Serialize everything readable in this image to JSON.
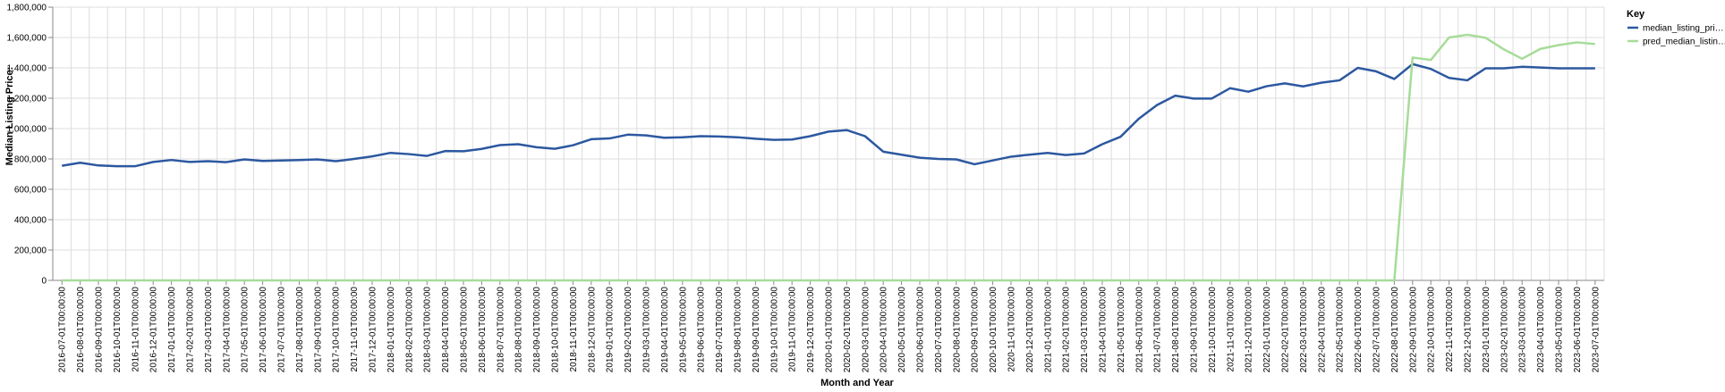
{
  "chart_data": {
    "type": "line",
    "title": "",
    "xlabel": "Month and Year",
    "ylabel": "Median Listing Price:",
    "ylim": [
      0,
      1800000
    ],
    "yticks": [
      0,
      200000,
      400000,
      600000,
      800000,
      1000000,
      1200000,
      1400000,
      1600000,
      1800000
    ],
    "ytick_labels": [
      "0",
      "200,000",
      "400,000",
      "600,000",
      "800,000",
      "1,000,000",
      "1,200,000",
      "1,400,000",
      "1,600,000",
      "1,800,000"
    ],
    "grid": true,
    "legend": {
      "title": "Key",
      "placement": "top-right"
    },
    "x": [
      "2016-07-01T00:00:00",
      "2016-08-01T00:00:00",
      "2016-09-01T00:00:00",
      "2016-10-01T00:00:00",
      "2016-11-01T00:00:00",
      "2016-12-01T00:00:00",
      "2017-01-01T00:00:00",
      "2017-02-01T00:00:00",
      "2017-03-01T00:00:00",
      "2017-04-01T00:00:00",
      "2017-05-01T00:00:00",
      "2017-06-01T00:00:00",
      "2017-07-01T00:00:00",
      "2017-08-01T00:00:00",
      "2017-09-01T00:00:00",
      "2017-10-01T00:00:00",
      "2017-11-01T00:00:00",
      "2017-12-01T00:00:00",
      "2018-01-01T00:00:00",
      "2018-02-01T00:00:00",
      "2018-03-01T00:00:00",
      "2018-04-01T00:00:00",
      "2018-05-01T00:00:00",
      "2018-06-01T00:00:00",
      "2018-07-01T00:00:00",
      "2018-08-01T00:00:00",
      "2018-09-01T00:00:00",
      "2018-10-01T00:00:00",
      "2018-11-01T00:00:00",
      "2018-12-01T00:00:00",
      "2019-01-01T00:00:00",
      "2019-02-01T00:00:00",
      "2019-03-01T00:00:00",
      "2019-04-01T00:00:00",
      "2019-05-01T00:00:00",
      "2019-06-01T00:00:00",
      "2019-07-01T00:00:00",
      "2019-08-01T00:00:00",
      "2019-09-01T00:00:00",
      "2019-10-01T00:00:00",
      "2019-11-01T00:00:00",
      "2019-12-01T00:00:00",
      "2020-01-01T00:00:00",
      "2020-02-01T00:00:00",
      "2020-03-01T00:00:00",
      "2020-04-01T00:00:00",
      "2020-05-01T00:00:00",
      "2020-06-01T00:00:00",
      "2020-07-01T00:00:00",
      "2020-08-01T00:00:00",
      "2020-09-01T00:00:00",
      "2020-10-01T00:00:00",
      "2020-11-01T00:00:00",
      "2020-12-01T00:00:00",
      "2021-01-01T00:00:00",
      "2021-02-01T00:00:00",
      "2021-03-01T00:00:00",
      "2021-04-01T00:00:00",
      "2021-05-01T00:00:00",
      "2021-06-01T00:00:00",
      "2021-07-01T00:00:00",
      "2021-08-01T00:00:00",
      "2021-09-01T00:00:00",
      "2021-10-01T00:00:00",
      "2021-11-01T00:00:00",
      "2021-12-01T00:00:00",
      "2022-01-01T00:00:00",
      "2022-02-01T00:00:00",
      "2022-03-01T00:00:00",
      "2022-04-01T00:00:00",
      "2022-05-01T00:00:00",
      "2022-06-01T00:00:00",
      "2022-07-01T00:00:00",
      "2022-08-01T00:00:00",
      "2022-09-01T00:00:00",
      "2022-10-01T00:00:00",
      "2022-11-01T00:00:00",
      "2022-12-01T00:00:00",
      "2023-01-01T00:00:00",
      "2023-02-01T00:00:00",
      "2023-03-01T00:00:00",
      "2023-04-01T00:00:00",
      "2023-05-01T00:00:00",
      "2023-06-01T00:00:00",
      "2023-07-01T00:00:00"
    ],
    "series": [
      {
        "name": "median_listing_pri…",
        "color": "#2c58a0",
        "values": [
          755000,
          775000,
          757000,
          752000,
          752000,
          780000,
          793000,
          780000,
          785000,
          779000,
          797000,
          787000,
          790000,
          793000,
          797000,
          785000,
          800000,
          817000,
          840000,
          832000,
          820000,
          852000,
          851000,
          866000,
          891000,
          897000,
          877000,
          867000,
          890000,
          930000,
          935000,
          960000,
          955000,
          940000,
          943000,
          950000,
          948000,
          943000,
          933000,
          926000,
          928000,
          950000,
          980000,
          990000,
          950000,
          848000,
          828000,
          808000,
          800000,
          797000,
          765000,
          790000,
          815000,
          828000,
          840000,
          826000,
          836000,
          897000,
          946000,
          1065000,
          1155000,
          1217000,
          1198000,
          1198000,
          1266000,
          1243000,
          1279000,
          1298000,
          1278000,
          1302000,
          1318000,
          1400000,
          1377000,
          1327000,
          1425000,
          1393000,
          1334000,
          1318000,
          1397000,
          1397000,
          1407000,
          1402000,
          1397000,
          1397000,
          1397000
        ]
      },
      {
        "name": "pred_median_listin…",
        "color": "#a6dc98",
        "values": [
          0,
          0,
          0,
          0,
          0,
          0,
          0,
          0,
          0,
          0,
          0,
          0,
          0,
          0,
          0,
          0,
          0,
          0,
          0,
          0,
          0,
          0,
          0,
          0,
          0,
          0,
          0,
          0,
          0,
          0,
          0,
          0,
          0,
          0,
          0,
          0,
          0,
          0,
          0,
          0,
          0,
          0,
          0,
          0,
          0,
          0,
          0,
          0,
          0,
          0,
          0,
          0,
          0,
          0,
          0,
          0,
          0,
          0,
          0,
          0,
          0,
          0,
          0,
          0,
          0,
          0,
          0,
          0,
          0,
          0,
          0,
          0,
          0,
          0,
          1468000,
          1452000,
          1600000,
          1618000,
          1598000,
          1522000,
          1460000,
          1525000,
          1550000,
          1568000,
          1557000
        ]
      }
    ]
  }
}
